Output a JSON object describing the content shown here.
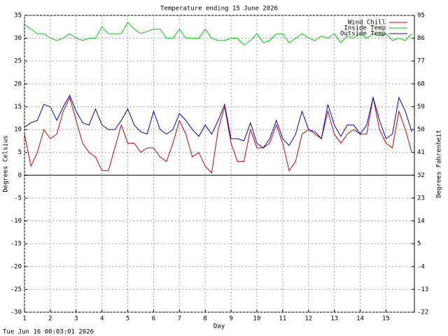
{
  "chart_data": {
    "type": "line",
    "title": "Temperature ending 15 June 2026",
    "x_label": "Day",
    "y_label": "Degrees Celsius",
    "y2_label": "Degrees Fahrenheit",
    "footer": "Tue Jun 16 00:03:01 2026",
    "legend": "upper right",
    "grid": true,
    "xlim": [
      1,
      16.1
    ],
    "xticks": [
      1,
      2,
      3,
      4,
      5,
      6,
      7,
      8,
      9,
      10,
      11,
      12,
      13,
      14,
      15
    ],
    "ylim": [
      -30,
      35
    ],
    "yticks": [
      35,
      30,
      25,
      20,
      15,
      10,
      5,
      0,
      -5,
      -10,
      -15,
      -20,
      -25,
      -30
    ],
    "y2lim": [
      -22,
      95
    ],
    "y2ticks": [
      95,
      86,
      77,
      68,
      59,
      50,
      41,
      32,
      23,
      14,
      5,
      -4,
      -13,
      -22
    ],
    "x": [
      1,
      1.25,
      1.5,
      1.75,
      2,
      2.25,
      2.5,
      2.75,
      3,
      3.25,
      3.5,
      3.75,
      4,
      4.25,
      4.5,
      4.75,
      5,
      5.25,
      5.5,
      5.75,
      6,
      6.25,
      6.5,
      6.75,
      7,
      7.25,
      7.5,
      7.75,
      8,
      8.25,
      8.5,
      8.75,
      9,
      9.25,
      9.5,
      9.75,
      10,
      10.25,
      10.5,
      10.75,
      11,
      11.25,
      11.5,
      11.75,
      12,
      12.25,
      12.5,
      12.75,
      13,
      13.25,
      13.5,
      13.75,
      14,
      14.25,
      14.5,
      14.75,
      15,
      15.25,
      15.5,
      15.75,
      16
    ],
    "series": [
      {
        "name": "Wind Chill",
        "color": "#d00000",
        "values": [
          9,
          2,
          5,
          10,
          8,
          9,
          14,
          17,
          12,
          7,
          5,
          4,
          1,
          1,
          6,
          11,
          7,
          7,
          5,
          6,
          6,
          4,
          3,
          7,
          12,
          9,
          4,
          5,
          2,
          0.5,
          10,
          15,
          7,
          3,
          3,
          10,
          6,
          6,
          7,
          11,
          7,
          1,
          3,
          9,
          10,
          9,
          8,
          14,
          9,
          7,
          9,
          10,
          9,
          9,
          17,
          10,
          7,
          6,
          14,
          10,
          5
        ]
      },
      {
        "name": "Inside Temp",
        "color": "#00d000",
        "values": [
          33,
          32,
          31,
          31,
          30,
          29.5,
          30,
          31,
          30,
          29.5,
          30,
          30,
          32.5,
          31,
          31,
          31,
          33.5,
          32,
          31,
          31.5,
          32,
          32,
          30,
          30,
          32,
          30,
          30,
          30,
          32,
          30,
          29.5,
          29.5,
          30,
          30,
          28.5,
          29.5,
          31,
          29,
          29.5,
          31,
          31,
          29,
          30,
          31,
          30,
          29.5,
          30.5,
          30,
          31,
          29,
          30.5,
          30,
          31,
          30,
          31,
          30.5,
          31,
          29.5,
          30,
          29.5,
          31
        ]
      },
      {
        "name": "Outside Temp",
        "color": "#0000d0",
        "values": [
          10.5,
          11.5,
          12,
          15.5,
          15,
          12,
          15,
          17.5,
          14,
          11.5,
          11,
          14.5,
          11,
          10,
          10,
          12,
          14.5,
          11,
          9.5,
          9,
          14,
          10,
          9,
          10,
          13.5,
          12,
          10,
          8.5,
          11,
          9,
          12,
          15.5,
          8,
          8,
          7.5,
          11.5,
          7,
          6,
          8,
          12,
          8,
          6.5,
          9,
          14,
          10,
          9.5,
          8,
          15.5,
          11,
          8.5,
          11,
          11,
          9,
          11,
          17,
          12,
          8,
          9,
          17,
          14,
          9.5
        ]
      }
    ]
  }
}
